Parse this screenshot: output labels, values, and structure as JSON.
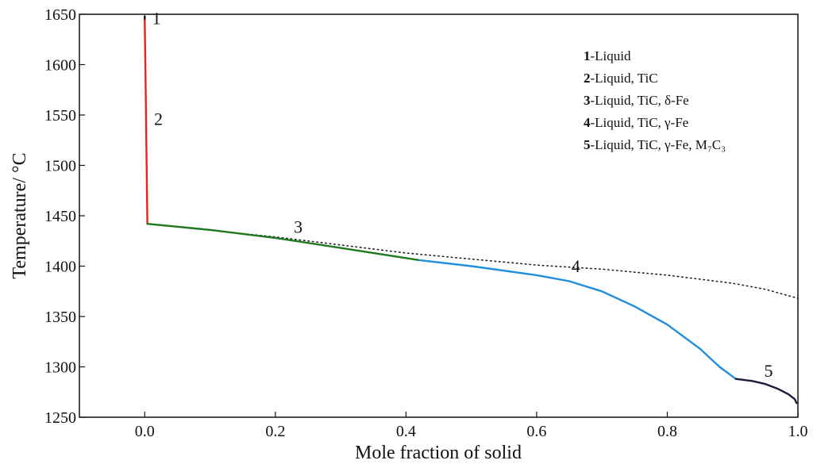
{
  "chart_data": {
    "type": "line",
    "title": "",
    "xlabel": "Mole fraction of solid",
    "ylabel": "Temperature/ °C",
    "xlim": [
      -0.1,
      1.0
    ],
    "ylim": [
      1250,
      1650
    ],
    "x_ticks": [
      0.0,
      0.2,
      0.4,
      0.6,
      0.8,
      1.0
    ],
    "x_tick_labels": [
      "0.0",
      "0.2",
      "0.4",
      "0.6",
      "0.8",
      "1.0"
    ],
    "y_ticks": [
      1250,
      1300,
      1350,
      1400,
      1450,
      1500,
      1550,
      1600,
      1650
    ],
    "y_tick_labels": [
      "1250",
      "1300",
      "1350",
      "1400",
      "1450",
      "1500",
      "1550",
      "1600",
      "1650"
    ],
    "grid": false,
    "legend_position": "top-right",
    "legend": [
      {
        "num": "1",
        "text": "-Liquid"
      },
      {
        "num": "2",
        "text": "-Liquid, TiC"
      },
      {
        "num": "3",
        "text": "-Liquid, TiC, δ-Fe"
      },
      {
        "num": "4",
        "text": "-Liquid, TiC, γ-Fe"
      },
      {
        "num": "5",
        "text": "-Liquid, TiC, γ-Fe, M₇C₃"
      }
    ],
    "series": [
      {
        "name": "1",
        "color": "#111111",
        "dash": "solid",
        "x": [
          0.0,
          0.0
        ],
        "y": [
          1648,
          1644
        ]
      },
      {
        "name": "2",
        "color": "#e8231c",
        "dash": "solid",
        "x": [
          0.0,
          0.001,
          0.002,
          0.003,
          0.004
        ],
        "y": [
          1644,
          1600,
          1550,
          1500,
          1442
        ]
      },
      {
        "name": "3",
        "color": "#1f7a1f",
        "dash": "solid",
        "x": [
          0.004,
          0.1,
          0.2,
          0.3,
          0.42
        ],
        "y": [
          1442,
          1436,
          1428,
          1418,
          1406
        ]
      },
      {
        "name": "4",
        "color": "#1f8fdc",
        "dash": "solid",
        "x": [
          0.42,
          0.5,
          0.6,
          0.65,
          0.7,
          0.75,
          0.8,
          0.85,
          0.88,
          0.905
        ],
        "y": [
          1406,
          1400,
          1391,
          1385,
          1375,
          1360,
          1342,
          1318,
          1300,
          1288
        ]
      },
      {
        "name": "5",
        "color": "#1a1a3a",
        "dash": "solid",
        "x": [
          0.905,
          0.93,
          0.95,
          0.97,
          0.985,
          0.995,
          0.998
        ],
        "y": [
          1288,
          1286,
          1283,
          1278,
          1273,
          1268,
          1264
        ]
      },
      {
        "name": "dotted",
        "color": "#222222",
        "dash": "dotted",
        "x": [
          0.004,
          0.2,
          0.4,
          0.6,
          0.7,
          0.8,
          0.9,
          0.95,
          1.0
        ],
        "y": [
          1442,
          1429,
          1413,
          1401,
          1397,
          1391,
          1383,
          1377,
          1368
        ]
      }
    ],
    "segment_labels": [
      {
        "text": "1",
        "x": 0.018,
        "y": 1640
      },
      {
        "text": "2",
        "x": 0.021,
        "y": 1540
      },
      {
        "text": "3",
        "x": 0.235,
        "y": 1433
      },
      {
        "text": "4",
        "x": 0.66,
        "y": 1394
      },
      {
        "text": "5",
        "x": 0.955,
        "y": 1290
      }
    ]
  }
}
